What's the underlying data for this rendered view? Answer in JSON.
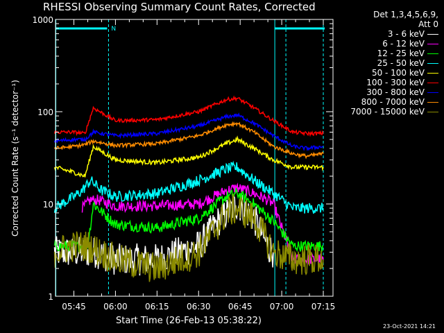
{
  "chart_data": {
    "type": "line",
    "title": "RHESSI Observing Summary Count Rates, Corrected",
    "xlabel": "Start Time (26-Feb-13 05:38:22)",
    "ylabel": "Corrected Count Rate (s⁻¹ detector⁻¹)",
    "yscale": "log",
    "ylim": [
      1,
      1000
    ],
    "xlim": [
      "05:38:22",
      "07:18:30"
    ],
    "x_ticks": [
      "05:45",
      "06:00",
      "06:15",
      "06:30",
      "06:45",
      "07:00",
      "07:15"
    ],
    "y_ticks": [
      "1",
      "10",
      "100",
      "1000"
    ],
    "legend_title": [
      "Det 1,3,4,5,6,9,",
      "Att 0"
    ],
    "legend_position": "outside-right",
    "annotations": [
      {
        "type": "vertical-dashed-line",
        "x": "05:57:30"
      },
      {
        "type": "vertical-dashed-line",
        "x": "07:01:30"
      },
      {
        "type": "vertical-solid-line",
        "x": "05:38:30"
      },
      {
        "type": "vertical-solid-line",
        "x": "06:57:30"
      },
      {
        "type": "vertical-dashed-line",
        "x": "07:15:00"
      },
      {
        "type": "night-bar",
        "x": [
          "05:38:22",
          "05:57:00"
        ]
      },
      {
        "type": "night-bar",
        "x": [
          "06:57:30",
          "07:15:30"
        ]
      },
      {
        "type": "bar-label",
        "text": "N",
        "x": "05:58:30"
      }
    ],
    "series": [
      {
        "name": "3 - 6 keV",
        "color": "#ffffff",
        "x": [
          "05:38",
          "05:48",
          "05:53",
          "06:00",
          "06:15",
          "06:30",
          "06:38",
          "06:44",
          "06:50",
          "06:55",
          "06:57"
        ],
        "values": [
          3.0,
          3.0,
          3.0,
          2.5,
          2.5,
          3.5,
          7,
          10,
          7,
          3.5,
          3.0
        ]
      },
      {
        "name": "6 - 12 keV",
        "color": "#ff00ff",
        "x": [
          "05:48",
          "05:51",
          "05:54",
          "06:00",
          "06:15",
          "06:30",
          "06:40",
          "06:44",
          "06:50",
          "06:55",
          "06:57",
          "07:04",
          "07:09",
          "07:15"
        ],
        "values": [
          9,
          11,
          11,
          9.5,
          9.5,
          10,
          14,
          15,
          13,
          11,
          10,
          2.5,
          2.5,
          2.5
        ]
      },
      {
        "name": "12 - 25 keV",
        "color": "#00ff00",
        "x": [
          "05:38",
          "05:50",
          "05:52",
          "06:00",
          "06:15",
          "06:30",
          "06:40",
          "06:44",
          "06:50",
          "06:57",
          "07:04",
          "07:09",
          "07:15"
        ],
        "values": [
          3.5,
          3.5,
          10,
          6,
          5.5,
          7,
          12,
          13,
          10,
          6.5,
          3.5,
          3.5,
          3.5
        ]
      },
      {
        "name": "25 - 50 keV",
        "color": "#00ffff",
        "x": [
          "05:38",
          "05:45",
          "05:48",
          "05:51",
          "05:55",
          "06:00",
          "06:15",
          "06:30",
          "06:40",
          "06:44",
          "06:50",
          "06:57",
          "07:04",
          "07:09",
          "07:15"
        ],
        "values": [
          9,
          12,
          14,
          18,
          14,
          12,
          13,
          18,
          24,
          25,
          18,
          13,
          9,
          9,
          9
        ]
      },
      {
        "name": "50 - 100 keV",
        "color": "#ffff00",
        "x": [
          "05:38",
          "05:45",
          "05:49",
          "05:52",
          "06:00",
          "06:15",
          "06:30",
          "06:40",
          "06:44",
          "06:50",
          "06:57",
          "07:04",
          "07:09",
          "07:15"
        ],
        "values": [
          25,
          22,
          20,
          42,
          30,
          28,
          32,
          45,
          50,
          40,
          30,
          25,
          25,
          25
        ]
      },
      {
        "name": "100 - 300 keV",
        "color": "#ff0000",
        "x": [
          "05:38",
          "05:45",
          "05:49",
          "05:52",
          "06:00",
          "06:15",
          "06:30",
          "06:40",
          "06:44",
          "06:50",
          "06:57",
          "07:04",
          "07:09",
          "07:15"
        ],
        "values": [
          60,
          60,
          58,
          110,
          80,
          82,
          100,
          135,
          140,
          110,
          80,
          60,
          58,
          58
        ]
      },
      {
        "name": "300 - 800 keV",
        "color": "#0000ff",
        "x": [
          "05:38",
          "05:45",
          "05:49",
          "05:52",
          "06:00",
          "06:15",
          "06:30",
          "06:40",
          "06:44",
          "06:50",
          "06:57",
          "07:04",
          "07:09",
          "07:15"
        ],
        "values": [
          48,
          50,
          50,
          60,
          55,
          58,
          70,
          88,
          92,
          75,
          55,
          42,
          40,
          42
        ]
      },
      {
        "name": "800 - 7000 keV",
        "color": "#ff8c00",
        "x": [
          "05:38",
          "05:45",
          "05:49",
          "05:52",
          "06:00",
          "06:15",
          "06:30",
          "06:40",
          "06:44",
          "06:50",
          "06:57",
          "07:04",
          "07:09",
          "07:15"
        ],
        "values": [
          40,
          42,
          44,
          48,
          43,
          45,
          55,
          72,
          75,
          60,
          42,
          35,
          33,
          35
        ]
      },
      {
        "name": "7000 - 15000 keV",
        "color": "#8b8b00",
        "x": [
          "05:38",
          "05:45",
          "05:50",
          "06:00",
          "06:15",
          "06:30",
          "06:40",
          "06:44",
          "06:50",
          "06:57",
          "07:04",
          "07:09",
          "07:15"
        ],
        "values": [
          3.0,
          3.5,
          3.5,
          2.5,
          2.0,
          3.0,
          8,
          9,
          7,
          3.0,
          2.5,
          2.5,
          2.5
        ]
      }
    ]
  },
  "timestamp": "23-Oct-2021 14:21"
}
